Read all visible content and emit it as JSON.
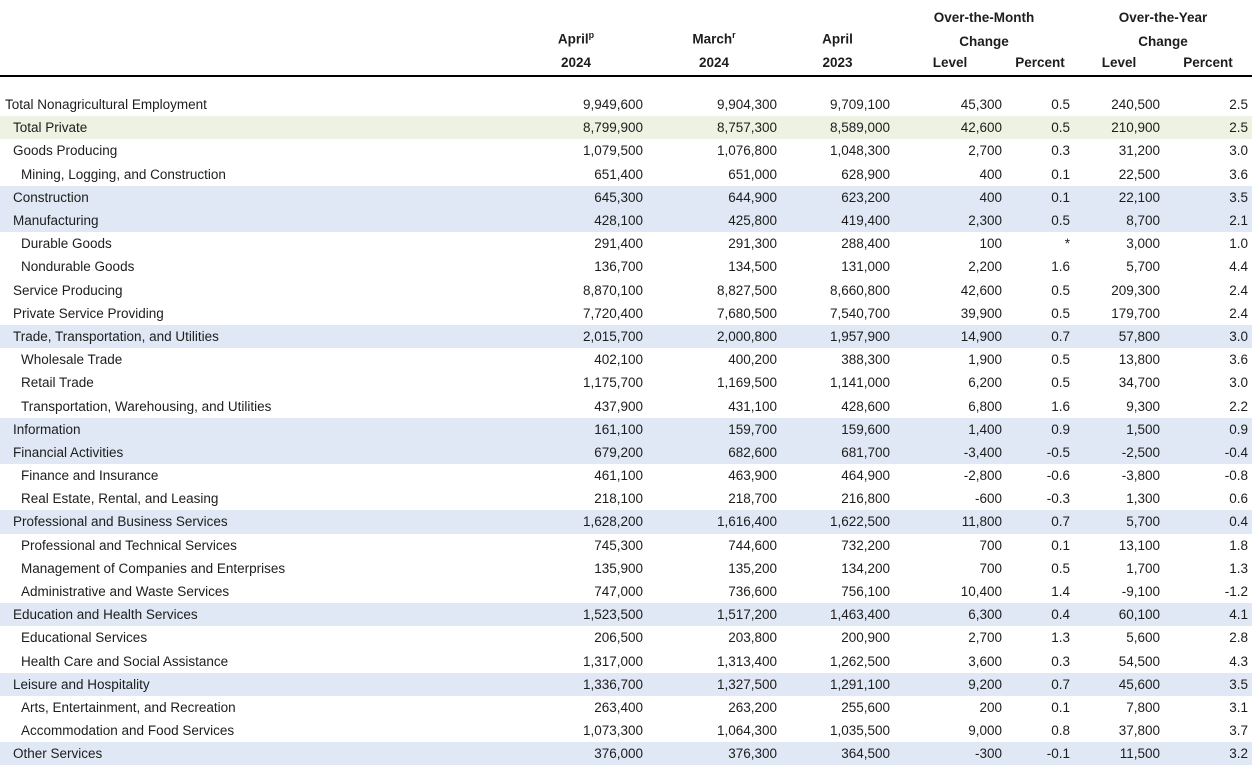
{
  "colors": {
    "highlight_blue": "#dfe8f4",
    "highlight_green": "#eef2e2",
    "header_rule": "#000000",
    "text": "#1d1d1d"
  },
  "header": {
    "period_columns": [
      {
        "month": "April",
        "sup": "p",
        "year": "2024"
      },
      {
        "month": "March",
        "sup": "r",
        "year": "2024"
      },
      {
        "month": "April",
        "sup": "",
        "year": "2023"
      }
    ],
    "group_columns": [
      {
        "line1": "Over-the-Month",
        "line2": "Change",
        "sub": [
          "Level",
          "Percent"
        ]
      },
      {
        "line1": "Over-the-Year",
        "line2": "Change",
        "sub": [
          "Level",
          "Percent"
        ]
      }
    ]
  },
  "rows": [
    {
      "label": "Total Nonagricultural Employment",
      "indent": 0,
      "highlight": "none",
      "values": [
        "9,949,600",
        "9,904,300",
        "9,709,100",
        "45,300",
        "0.5",
        "240,500",
        "2.5"
      ]
    },
    {
      "label": "Total Private",
      "indent": 1,
      "highlight": "green",
      "values": [
        "8,799,900",
        "8,757,300",
        "8,589,000",
        "42,600",
        "0.5",
        "210,900",
        "2.5"
      ]
    },
    {
      "label": "Goods Producing",
      "indent": 1,
      "highlight": "none",
      "values": [
        "1,079,500",
        "1,076,800",
        "1,048,300",
        "2,700",
        "0.3",
        "31,200",
        "3.0"
      ]
    },
    {
      "label": "Mining, Logging, and Construction",
      "indent": 2,
      "highlight": "none",
      "values": [
        "651,400",
        "651,000",
        "628,900",
        "400",
        "0.1",
        "22,500",
        "3.6"
      ]
    },
    {
      "label": "Construction",
      "indent": 1,
      "highlight": "blue",
      "values": [
        "645,300",
        "644,900",
        "623,200",
        "400",
        "0.1",
        "22,100",
        "3.5"
      ]
    },
    {
      "label": "Manufacturing",
      "indent": 1,
      "highlight": "blue",
      "values": [
        "428,100",
        "425,800",
        "419,400",
        "2,300",
        "0.5",
        "8,700",
        "2.1"
      ]
    },
    {
      "label": "Durable Goods",
      "indent": 2,
      "highlight": "none",
      "values": [
        "291,400",
        "291,300",
        "288,400",
        "100",
        "*",
        "3,000",
        "1.0"
      ]
    },
    {
      "label": "Nondurable Goods",
      "indent": 2,
      "highlight": "none",
      "values": [
        "136,700",
        "134,500",
        "131,000",
        "2,200",
        "1.6",
        "5,700",
        "4.4"
      ]
    },
    {
      "label": "Service Producing",
      "indent": 1,
      "highlight": "none",
      "values": [
        "8,870,100",
        "8,827,500",
        "8,660,800",
        "42,600",
        "0.5",
        "209,300",
        "2.4"
      ]
    },
    {
      "label": "Private Service Providing",
      "indent": 1,
      "highlight": "none",
      "values": [
        "7,720,400",
        "7,680,500",
        "7,540,700",
        "39,900",
        "0.5",
        "179,700",
        "2.4"
      ]
    },
    {
      "label": "Trade, Transportation, and Utilities",
      "indent": 1,
      "highlight": "blue",
      "values": [
        "2,015,700",
        "2,000,800",
        "1,957,900",
        "14,900",
        "0.7",
        "57,800",
        "3.0"
      ]
    },
    {
      "label": "Wholesale Trade",
      "indent": 2,
      "highlight": "none",
      "values": [
        "402,100",
        "400,200",
        "388,300",
        "1,900",
        "0.5",
        "13,800",
        "3.6"
      ]
    },
    {
      "label": "Retail Trade",
      "indent": 2,
      "highlight": "none",
      "values": [
        "1,175,700",
        "1,169,500",
        "1,141,000",
        "6,200",
        "0.5",
        "34,700",
        "3.0"
      ]
    },
    {
      "label": "Transportation, Warehousing, and Utilities",
      "indent": 2,
      "highlight": "none",
      "values": [
        "437,900",
        "431,100",
        "428,600",
        "6,800",
        "1.6",
        "9,300",
        "2.2"
      ]
    },
    {
      "label": "Information",
      "indent": 1,
      "highlight": "blue",
      "values": [
        "161,100",
        "159,700",
        "159,600",
        "1,400",
        "0.9",
        "1,500",
        "0.9"
      ]
    },
    {
      "label": "Financial Activities",
      "indent": 1,
      "highlight": "blue",
      "values": [
        "679,200",
        "682,600",
        "681,700",
        "-3,400",
        "-0.5",
        "-2,500",
        "-0.4"
      ]
    },
    {
      "label": "Finance and Insurance",
      "indent": 2,
      "highlight": "none",
      "values": [
        "461,100",
        "463,900",
        "464,900",
        "-2,800",
        "-0.6",
        "-3,800",
        "-0.8"
      ]
    },
    {
      "label": "Real Estate, Rental, and Leasing",
      "indent": 2,
      "highlight": "none",
      "values": [
        "218,100",
        "218,700",
        "216,800",
        "-600",
        "-0.3",
        "1,300",
        "0.6"
      ]
    },
    {
      "label": "Professional and Business Services",
      "indent": 1,
      "highlight": "blue",
      "values": [
        "1,628,200",
        "1,616,400",
        "1,622,500",
        "11,800",
        "0.7",
        "5,700",
        "0.4"
      ]
    },
    {
      "label": "Professional and Technical Services",
      "indent": 2,
      "highlight": "none",
      "values": [
        "745,300",
        "744,600",
        "732,200",
        "700",
        "0.1",
        "13,100",
        "1.8"
      ]
    },
    {
      "label": "Management of Companies and Enterprises",
      "indent": 2,
      "highlight": "none",
      "values": [
        "135,900",
        "135,200",
        "134,200",
        "700",
        "0.5",
        "1,700",
        "1.3"
      ]
    },
    {
      "label": "Administrative and Waste Services",
      "indent": 2,
      "highlight": "none",
      "values": [
        "747,000",
        "736,600",
        "756,100",
        "10,400",
        "1.4",
        "-9,100",
        "-1.2"
      ]
    },
    {
      "label": "Education and Health Services",
      "indent": 1,
      "highlight": "blue",
      "values": [
        "1,523,500",
        "1,517,200",
        "1,463,400",
        "6,300",
        "0.4",
        "60,100",
        "4.1"
      ]
    },
    {
      "label": "Educational Services",
      "indent": 2,
      "highlight": "none",
      "values": [
        "206,500",
        "203,800",
        "200,900",
        "2,700",
        "1.3",
        "5,600",
        "2.8"
      ]
    },
    {
      "label": "Health Care and Social Assistance",
      "indent": 2,
      "highlight": "none",
      "values": [
        "1,317,000",
        "1,313,400",
        "1,262,500",
        "3,600",
        "0.3",
        "54,500",
        "4.3"
      ]
    },
    {
      "label": "Leisure and Hospitality",
      "indent": 1,
      "highlight": "blue",
      "values": [
        "1,336,700",
        "1,327,500",
        "1,291,100",
        "9,200",
        "0.7",
        "45,600",
        "3.5"
      ]
    },
    {
      "label": "Arts, Entertainment, and Recreation",
      "indent": 2,
      "highlight": "none",
      "values": [
        "263,400",
        "263,200",
        "255,600",
        "200",
        "0.1",
        "7,800",
        "3.1"
      ]
    },
    {
      "label": "Accommodation and Food Services",
      "indent": 2,
      "highlight": "none",
      "values": [
        "1,073,300",
        "1,064,300",
        "1,035,500",
        "9,000",
        "0.8",
        "37,800",
        "3.7"
      ]
    },
    {
      "label": "Other Services",
      "indent": 1,
      "highlight": "blue",
      "values": [
        "376,000",
        "376,300",
        "364,500",
        "-300",
        "-0.1",
        "11,500",
        "3.2"
      ]
    }
  ]
}
